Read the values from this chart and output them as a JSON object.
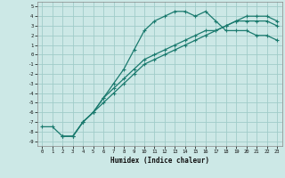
{
  "xlabel": "Humidex (Indice chaleur)",
  "bg_color": "#cce8e6",
  "grid_color": "#a0ccc9",
  "line_color": "#1a7a6e",
  "xlim": [
    -0.5,
    23.5
  ],
  "ylim": [
    -9.5,
    5.5
  ],
  "xticks": [
    0,
    1,
    2,
    3,
    4,
    5,
    6,
    7,
    8,
    9,
    10,
    11,
    12,
    13,
    14,
    15,
    16,
    17,
    18,
    19,
    20,
    21,
    22,
    23
  ],
  "yticks": [
    5,
    4,
    3,
    2,
    1,
    0,
    -1,
    -2,
    -3,
    -4,
    -5,
    -6,
    -7,
    -8,
    -9
  ],
  "line1_x": [
    0,
    1,
    2,
    3,
    4,
    5,
    6,
    7,
    8,
    9,
    10,
    11,
    12,
    13,
    14,
    15,
    16,
    17,
    18,
    19,
    20,
    21,
    22,
    23
  ],
  "line1_y": [
    -7.5,
    -7.5,
    -8.5,
    -8.5,
    -7.0,
    -6.0,
    -4.5,
    -3.0,
    -1.5,
    0.5,
    2.5,
    3.5,
    4.0,
    4.5,
    4.5,
    4.0,
    4.5,
    3.5,
    2.5,
    2.5,
    2.5,
    2.0,
    2.0,
    1.5
  ],
  "line2_x": [
    2,
    3,
    4,
    5,
    6,
    7,
    8,
    9,
    10,
    11,
    12,
    13,
    14,
    15,
    16,
    17,
    18,
    19,
    20,
    21,
    22,
    23
  ],
  "line2_y": [
    -8.5,
    -8.5,
    -7.0,
    -6.0,
    -4.5,
    -3.5,
    -2.5,
    -1.5,
    -0.5,
    0.0,
    0.5,
    1.0,
    1.5,
    2.0,
    2.5,
    2.5,
    3.0,
    3.5,
    3.5,
    3.5,
    3.5,
    3.0
  ],
  "line3_x": [
    2,
    3,
    4,
    5,
    6,
    7,
    8,
    9,
    10,
    11,
    12,
    13,
    14,
    15,
    16,
    17,
    18,
    19,
    20,
    21,
    22,
    23
  ],
  "line3_y": [
    -8.5,
    -8.5,
    -7.0,
    -6.0,
    -5.0,
    -4.0,
    -3.0,
    -2.0,
    -1.0,
    -0.5,
    0.0,
    0.5,
    1.0,
    1.5,
    2.0,
    2.5,
    3.0,
    3.5,
    4.0,
    4.0,
    4.0,
    3.5
  ]
}
